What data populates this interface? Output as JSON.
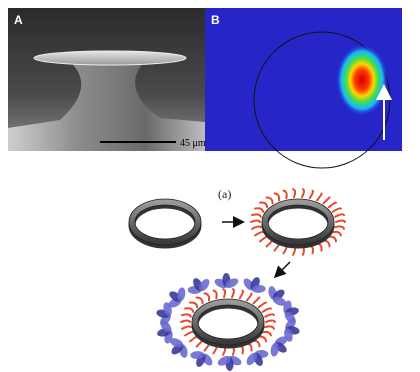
{
  "panels": [
    {
      "label": "A",
      "scale_bar": "45 μm"
    },
    {
      "label": "B"
    }
  ],
  "scheme": {
    "label": "(a)"
  }
}
